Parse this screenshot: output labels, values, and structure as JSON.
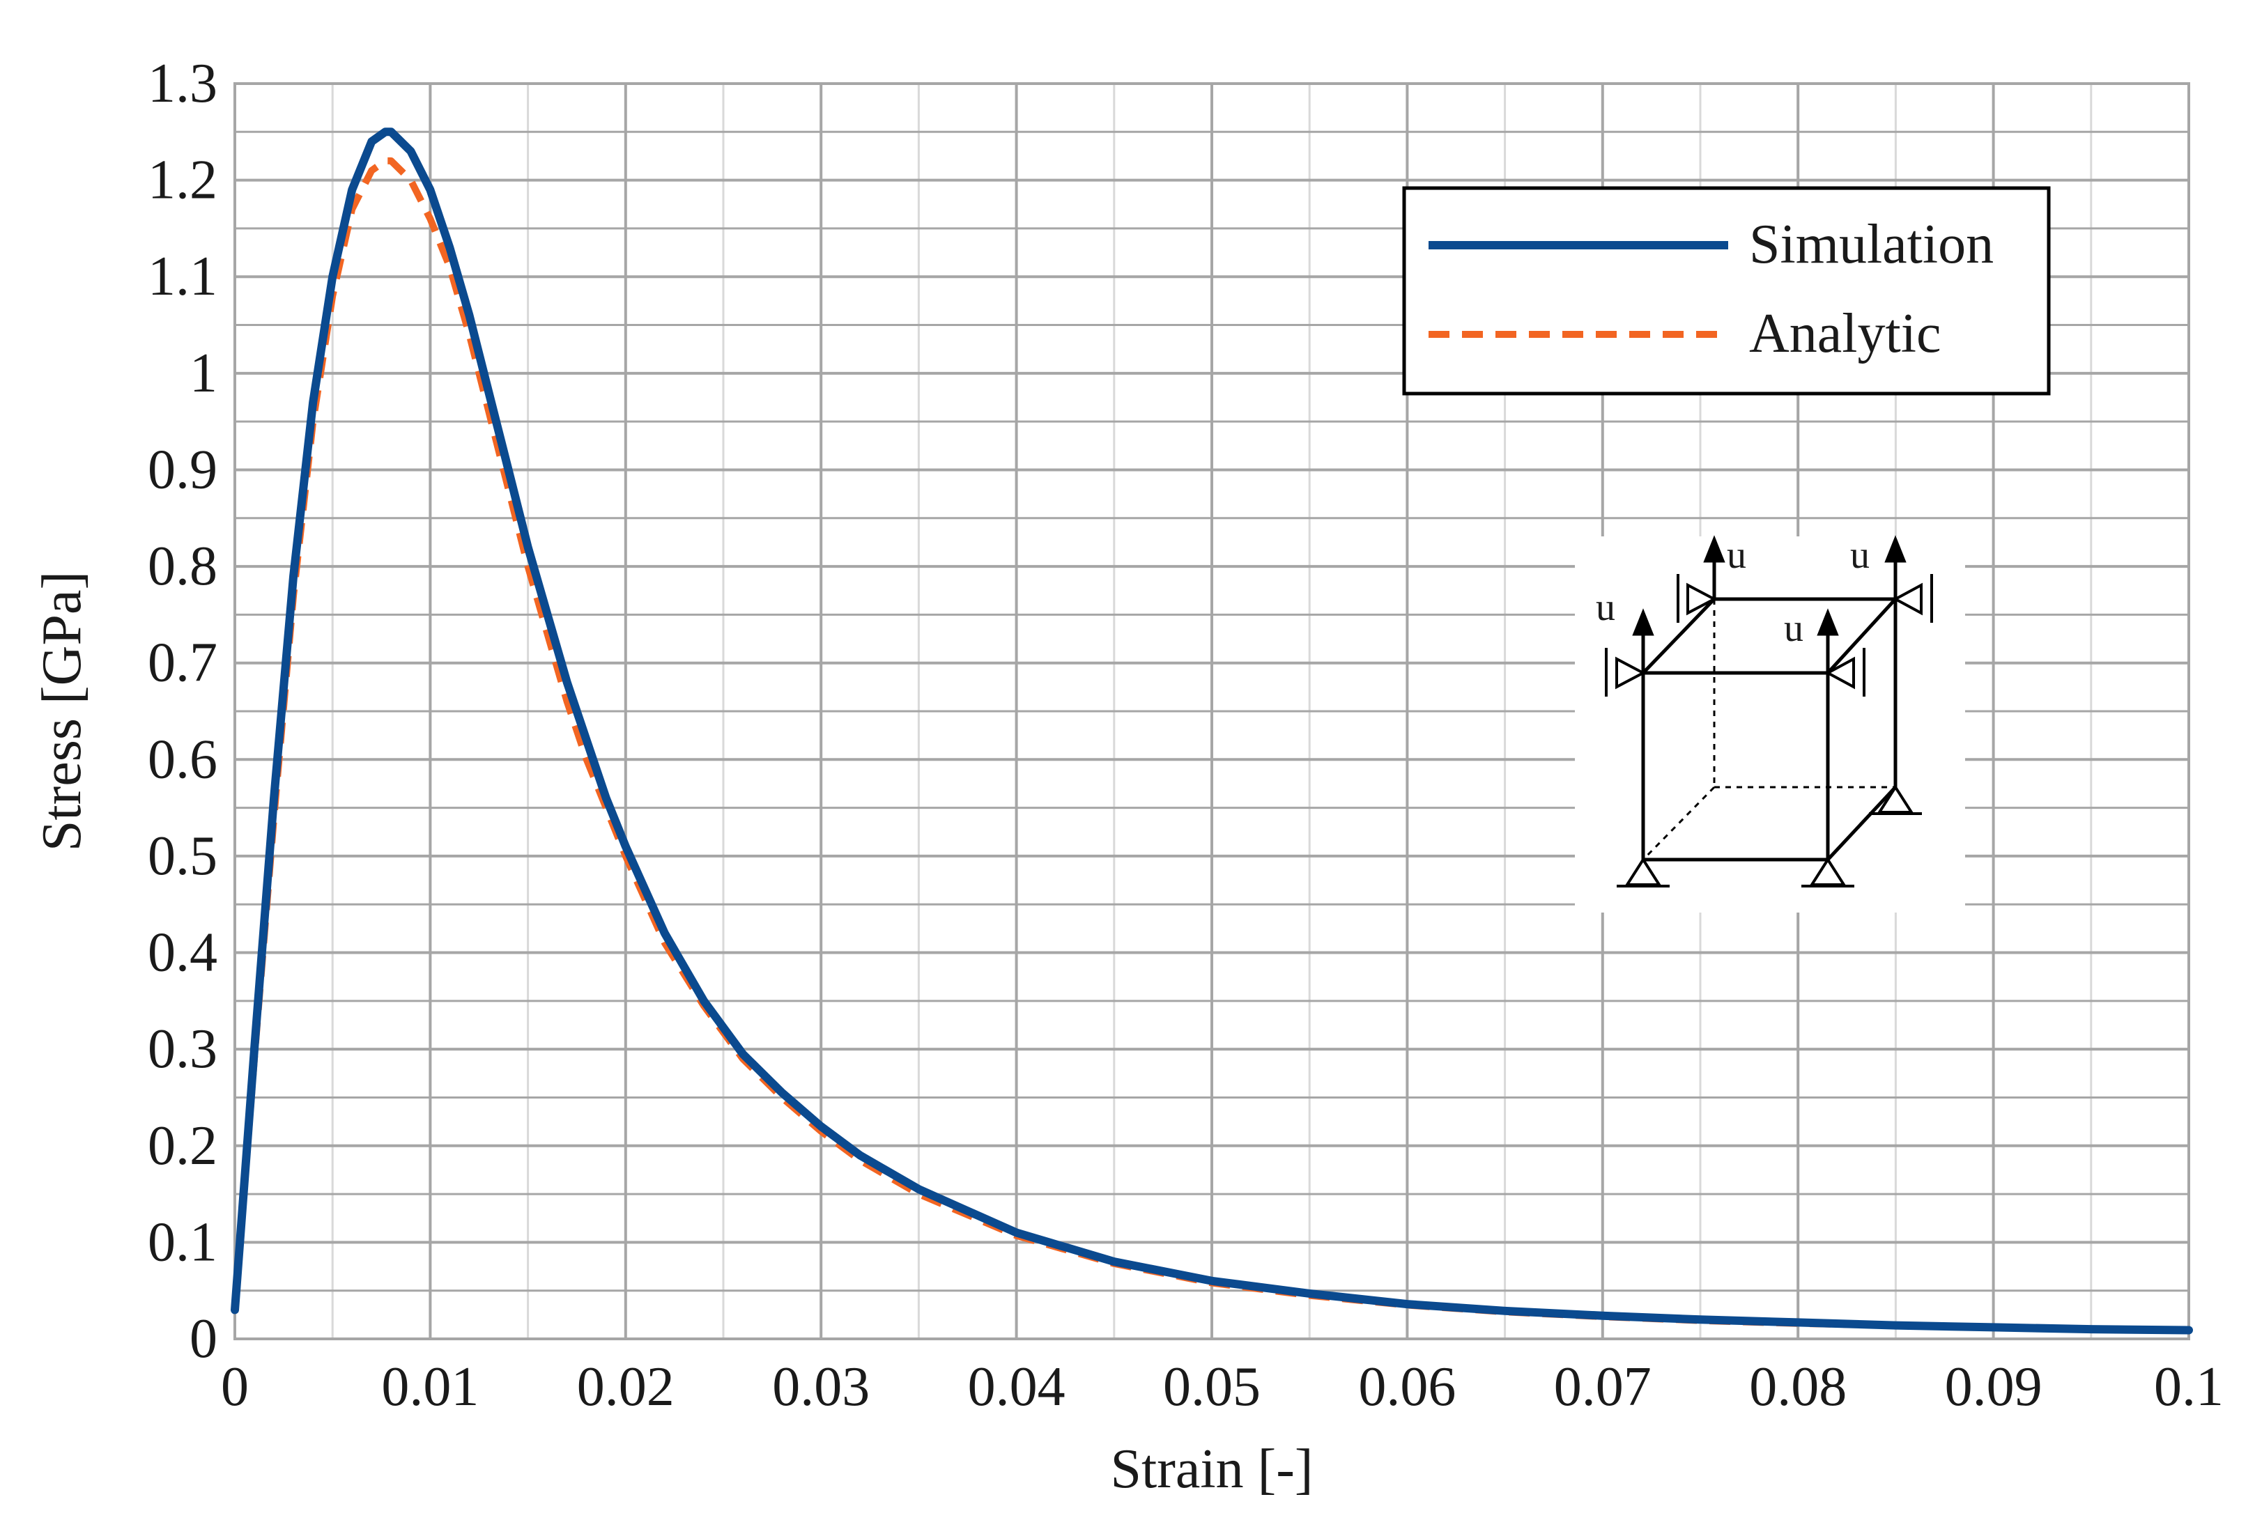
{
  "chart_data": {
    "type": "line",
    "xlabel": "Strain [-]",
    "ylabel": "Stress [GPa]",
    "xlim": [
      0,
      0.1
    ],
    "ylim": [
      0,
      1.3
    ],
    "xticks": [
      "0",
      "0.01",
      "0.02",
      "0.03",
      "0.04",
      "0.05",
      "0.06",
      "0.07",
      "0.08",
      "0.09",
      "0.1"
    ],
    "yticks": [
      "0",
      "0.1",
      "0.2",
      "0.3",
      "0.4",
      "0.5",
      "0.6",
      "0.7",
      "0.8",
      "0.9",
      "1",
      "1.1",
      "1.2",
      "1.3"
    ],
    "grid": true,
    "legend_position": "top-right",
    "series": [
      {
        "name": "Simulation",
        "color": "#0b4a8f",
        "style": "solid",
        "points": [
          [
            0,
            0.03
          ],
          [
            0.001,
            0.3
          ],
          [
            0.002,
            0.56
          ],
          [
            0.003,
            0.79
          ],
          [
            0.004,
            0.97
          ],
          [
            0.005,
            1.1
          ],
          [
            0.006,
            1.19
          ],
          [
            0.007,
            1.24
          ],
          [
            0.0077,
            1.25
          ],
          [
            0.008,
            1.25
          ],
          [
            0.009,
            1.23
          ],
          [
            0.01,
            1.19
          ],
          [
            0.011,
            1.13
          ],
          [
            0.012,
            1.06
          ],
          [
            0.013,
            0.98
          ],
          [
            0.014,
            0.9
          ],
          [
            0.015,
            0.82
          ],
          [
            0.016,
            0.75
          ],
          [
            0.017,
            0.68
          ],
          [
            0.018,
            0.62
          ],
          [
            0.019,
            0.56
          ],
          [
            0.02,
            0.51
          ],
          [
            0.022,
            0.42
          ],
          [
            0.024,
            0.35
          ],
          [
            0.026,
            0.295
          ],
          [
            0.028,
            0.255
          ],
          [
            0.03,
            0.22
          ],
          [
            0.032,
            0.19
          ],
          [
            0.035,
            0.155
          ],
          [
            0.04,
            0.11
          ],
          [
            0.045,
            0.08
          ],
          [
            0.05,
            0.06
          ],
          [
            0.055,
            0.047
          ],
          [
            0.06,
            0.036
          ],
          [
            0.065,
            0.029
          ],
          [
            0.07,
            0.024
          ],
          [
            0.075,
            0.02
          ],
          [
            0.08,
            0.017
          ],
          [
            0.085,
            0.014
          ],
          [
            0.09,
            0.012
          ],
          [
            0.095,
            0.01
          ],
          [
            0.1,
            0.009
          ]
        ]
      },
      {
        "name": "Analytic",
        "color": "#f26522",
        "style": "dashed",
        "points": [
          [
            0,
            0.03
          ],
          [
            0.001,
            0.29
          ],
          [
            0.002,
            0.54
          ],
          [
            0.003,
            0.77
          ],
          [
            0.004,
            0.95
          ],
          [
            0.005,
            1.08
          ],
          [
            0.006,
            1.17
          ],
          [
            0.007,
            1.21
          ],
          [
            0.0077,
            1.22
          ],
          [
            0.008,
            1.22
          ],
          [
            0.009,
            1.2
          ],
          [
            0.01,
            1.16
          ],
          [
            0.011,
            1.11
          ],
          [
            0.012,
            1.04
          ],
          [
            0.013,
            0.96
          ],
          [
            0.014,
            0.88
          ],
          [
            0.015,
            0.8
          ],
          [
            0.016,
            0.73
          ],
          [
            0.017,
            0.66
          ],
          [
            0.018,
            0.6
          ],
          [
            0.019,
            0.55
          ],
          [
            0.02,
            0.5
          ],
          [
            0.022,
            0.41
          ],
          [
            0.024,
            0.345
          ],
          [
            0.026,
            0.29
          ],
          [
            0.028,
            0.25
          ],
          [
            0.03,
            0.215
          ],
          [
            0.032,
            0.185
          ],
          [
            0.035,
            0.15
          ],
          [
            0.04,
            0.107
          ],
          [
            0.045,
            0.078
          ],
          [
            0.05,
            0.058
          ],
          [
            0.055,
            0.045
          ],
          [
            0.06,
            0.035
          ],
          [
            0.065,
            0.028
          ],
          [
            0.07,
            0.023
          ],
          [
            0.075,
            0.019
          ],
          [
            0.08,
            0.016
          ],
          [
            0.085,
            0.014
          ],
          [
            0.09,
            0.012
          ],
          [
            0.095,
            0.01
          ],
          [
            0.1,
            0.009
          ]
        ]
      }
    ]
  },
  "inset": {
    "labels": [
      "u",
      "u",
      "u",
      "u"
    ]
  }
}
